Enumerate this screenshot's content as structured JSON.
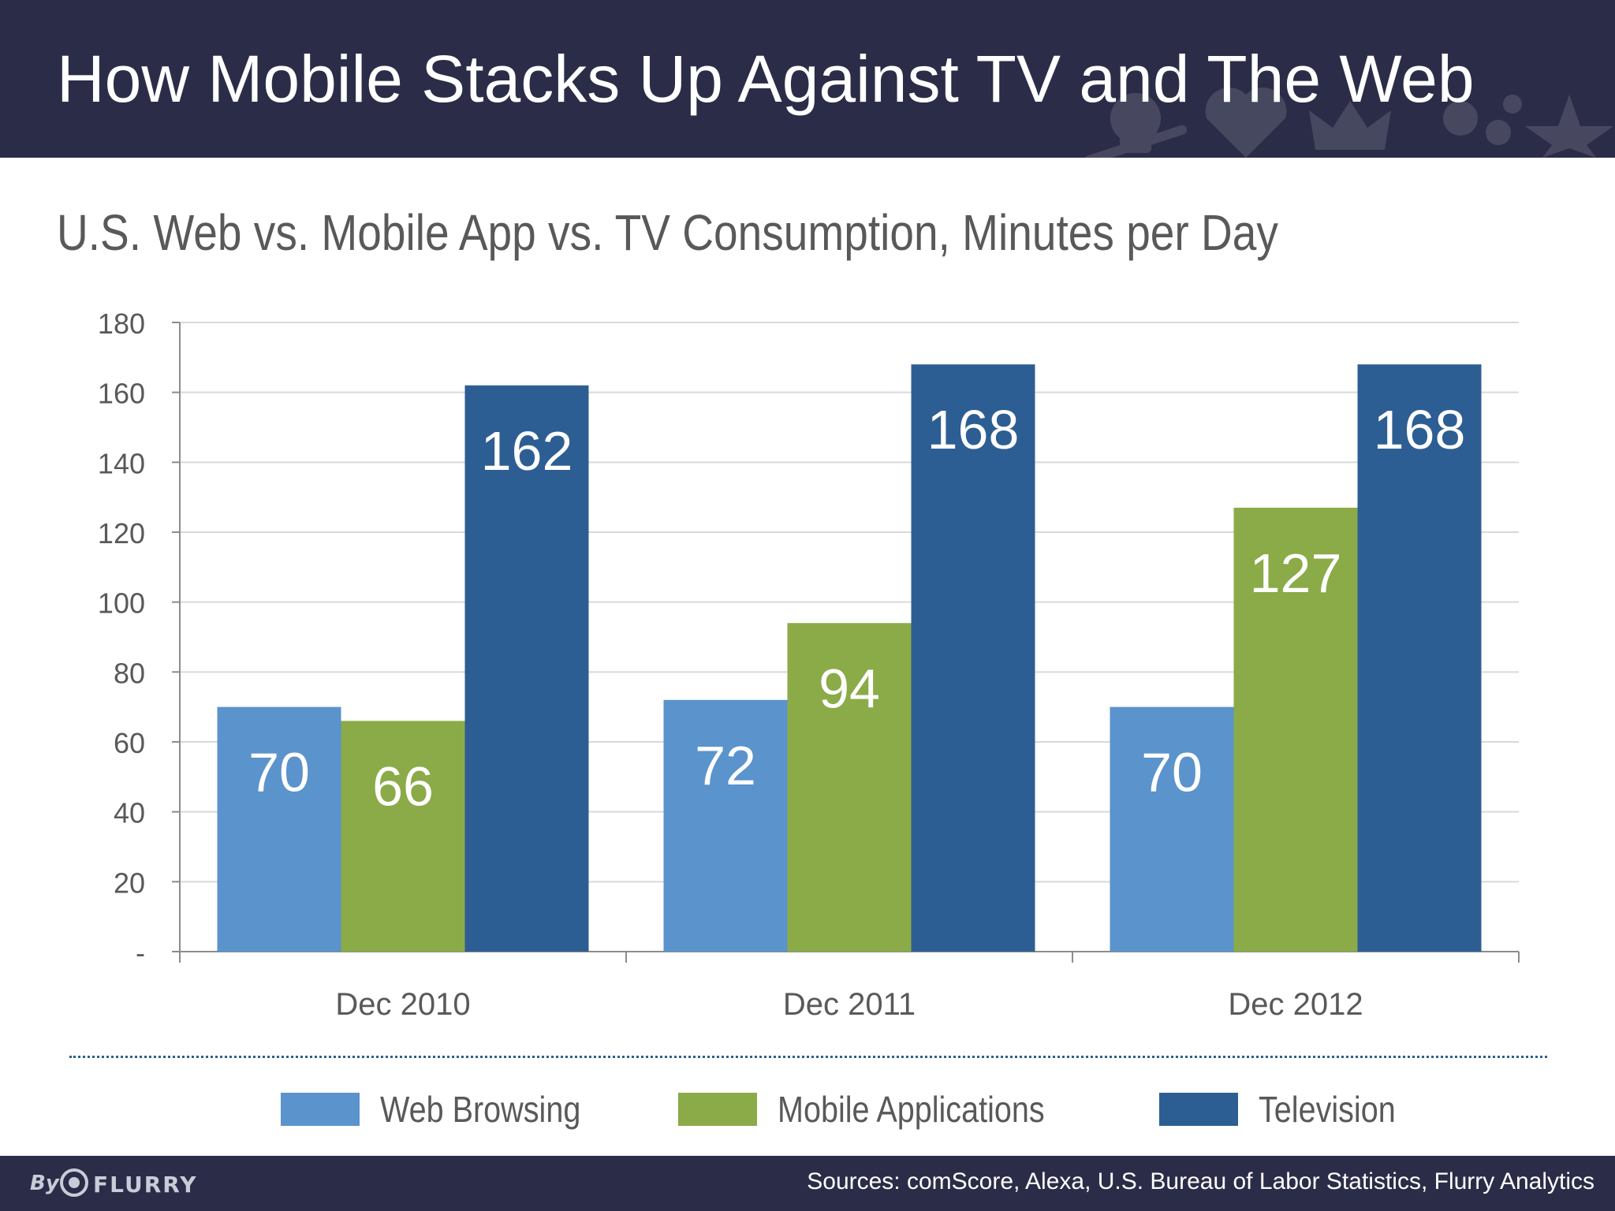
{
  "slide": {
    "title": "How Mobile Stacks Up Against TV and The Web",
    "subtitle": "U.S. Web vs. Mobile App vs. TV Consumption, Minutes per Day"
  },
  "chart_data": {
    "type": "bar",
    "title": "",
    "xlabel": "",
    "ylabel": "",
    "categories": [
      "Dec 2010",
      "Dec 2011",
      "Dec 2012"
    ],
    "series": [
      {
        "name": "Web Browsing",
        "values": [
          70,
          72,
          70
        ],
        "color": "#5b93cc"
      },
      {
        "name": "Mobile Applications",
        "values": [
          66,
          94,
          127
        ],
        "color": "#8aab48"
      },
      {
        "name": "Television",
        "values": [
          162,
          168,
          168
        ],
        "color": "#2d5e93"
      }
    ],
    "ylim": [
      0,
      180
    ],
    "yticks": [
      0,
      20,
      40,
      60,
      80,
      100,
      120,
      140,
      160,
      180
    ],
    "ytick_labels": [
      "-",
      "20",
      "40",
      "60",
      "80",
      "100",
      "120",
      "140",
      "160",
      "180"
    ],
    "grid": true,
    "legend": "bottom",
    "data_labels": true
  },
  "footer": {
    "brand_prefix": "By",
    "brand_name": "FLURRY",
    "sources": "Sources: comScore, Alexa, U.S. Bureau of Labor Statistics, Flurry Analytics"
  },
  "colors": {
    "header_bg": "#2b2d48",
    "label_text": "#595959",
    "grid": "#d9d9d9"
  },
  "icons": [
    "skull-icon",
    "heart-icon",
    "crown-icon",
    "gear-icon",
    "star-icon",
    "flurry-logo-icon"
  ]
}
